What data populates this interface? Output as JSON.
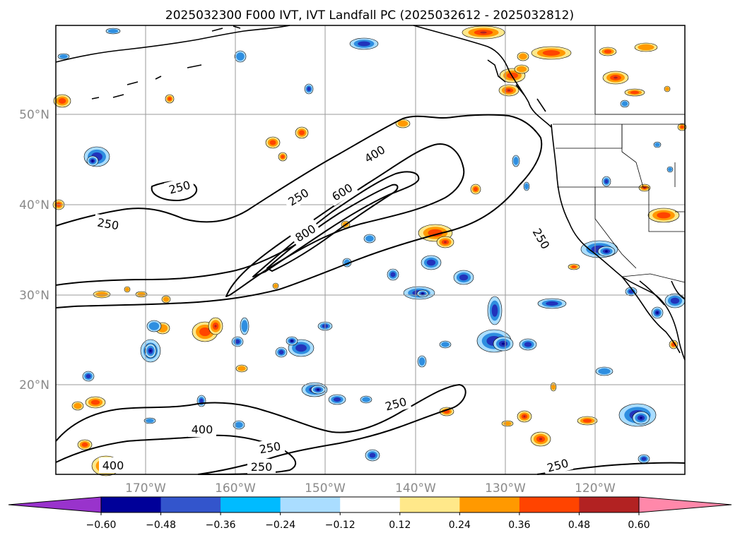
{
  "title": "2025032300 F000 IVT, IVT Landfall PC (2025032612 - 2025032812)",
  "lat_labels": [
    "50°N",
    "40°N",
    "30°N",
    "20°N"
  ],
  "lon_labels": [
    "170°W",
    "160°W",
    "150°W",
    "140°W",
    "130°W",
    "120°W"
  ],
  "colorbar": {
    "ticks": [
      "−0.60",
      "−0.48",
      "−0.36",
      "−0.24",
      "−0.12",
      "0.12",
      "0.24",
      "0.36",
      "0.48",
      "0.60"
    ],
    "colors": [
      "#9933cc",
      "#000099",
      "#3355cc",
      "#00bbff",
      "#aaddff",
      "#ffffff",
      "#ffe88a",
      "#ff9900",
      "#ff4400",
      "#b22222",
      "#ff88aa"
    ]
  },
  "contour_labels": [
    "400",
    "250",
    "600",
    "250",
    "250",
    "800",
    "250",
    "250",
    "400",
    "250",
    "400",
    "250",
    "250"
  ],
  "pc_colors": {
    "neg_outer": "#aaddff",
    "neg_mid": "#2e8ee0",
    "neg_core": "#2233bb",
    "neg_extreme": "#000088",
    "pos_outer": "#ffe88a",
    "pos_mid": "#ff9900",
    "pos_core": "#ff4400",
    "pos_extreme": "#b22222"
  }
}
